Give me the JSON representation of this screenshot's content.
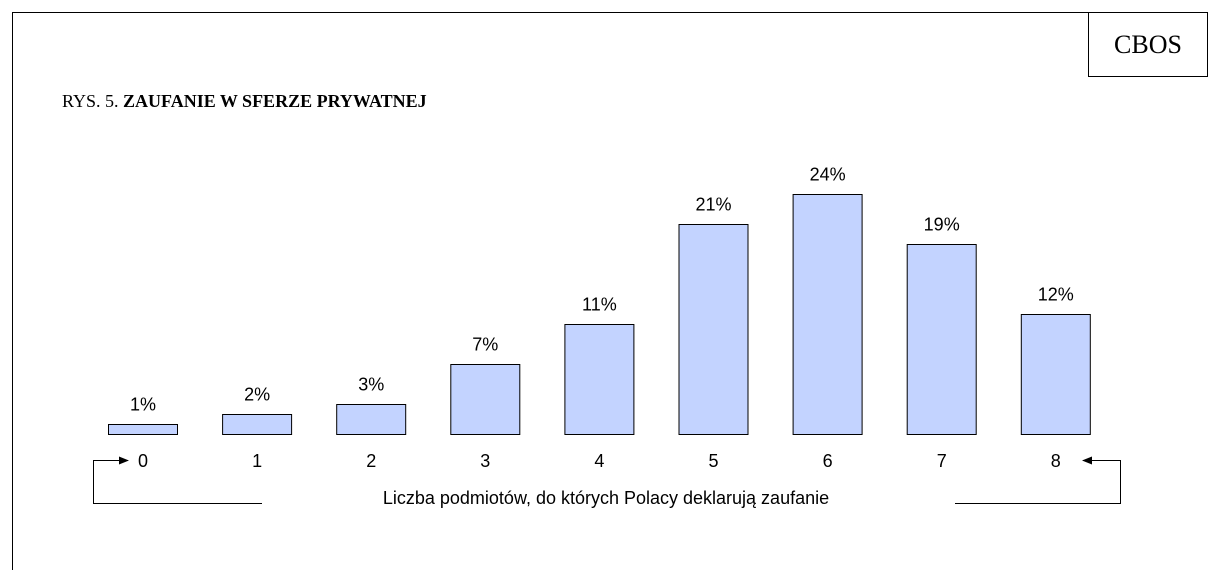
{
  "chart_data": {
    "type": "bar",
    "source": "CBOS",
    "figure_label": "RYS. 5.",
    "title": "ZAUFANIE W SFERZE PRYWATNEJ",
    "x_label": "Liczba podmiotów, do których Polacy deklarują zaufanie",
    "categories": [
      "0",
      "1",
      "2",
      "3",
      "4",
      "5",
      "6",
      "7",
      "8"
    ],
    "values": [
      1,
      2,
      3,
      7,
      11,
      21,
      24,
      19,
      12
    ],
    "value_labels": [
      "1%",
      "2%",
      "3%",
      "7%",
      "11%",
      "21%",
      "24%",
      "19%",
      "12%"
    ],
    "color": "#c3d3ff"
  }
}
